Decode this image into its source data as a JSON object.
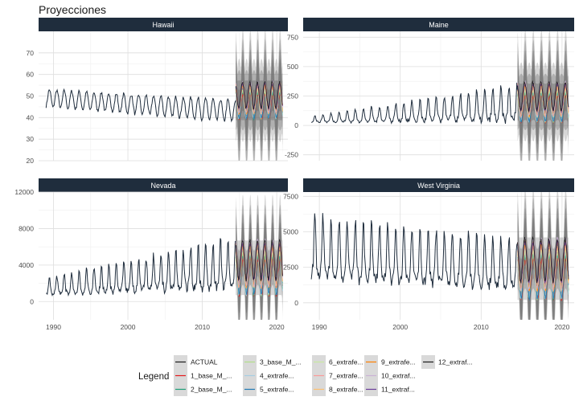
{
  "title": "Proyecciones",
  "legend": {
    "title": "Legend",
    "entries": [
      {
        "label": "ACTUAL",
        "color": "#1a1a1a"
      },
      {
        "label": "1_base_M_...",
        "color": "#e41a1c"
      },
      {
        "label": "2_base_M_...",
        "color": "#1b9e77"
      },
      {
        "label": "3_base_M_...",
        "color": "#b2df8a"
      },
      {
        "label": "4_extrafe...",
        "color": "#a6cee3"
      },
      {
        "label": "5_extrafe...",
        "color": "#1f78b4"
      },
      {
        "label": "6_extrafe...",
        "color": "#c7e9a0"
      },
      {
        "label": "7_extrafe...",
        "color": "#fb9a99"
      },
      {
        "label": "8_extrafe...",
        "color": "#fdbf6f"
      },
      {
        "label": "9_extrafe...",
        "color": "#ff7f00"
      },
      {
        "label": "10_extraf...",
        "color": "#cab2d6"
      },
      {
        "label": "11_extraf...",
        "color": "#6a3d9a"
      },
      {
        "label": "12_extraf...",
        "color": "#1a1a1a"
      }
    ]
  },
  "chart_data": {
    "type": "line",
    "shared_x_range": [
      1988,
      2021.5
    ],
    "x_ticks": [
      1990,
      2000,
      2010,
      2020
    ],
    "history_start": 1989,
    "forecast_start": 2014.5,
    "forecast_end": 2020.8,
    "series_names": [
      "ACTUAL",
      "1_base_M_...",
      "2_base_M_...",
      "3_base_M_...",
      "4_extrafe...",
      "5_extrafe...",
      "6_extrafe...",
      "7_extrafe...",
      "8_extrafe...",
      "9_extrafe...",
      "10_extraf...",
      "11_extraf...",
      "12_extraf..."
    ],
    "panels": [
      {
        "title": "Hawaii",
        "ylim": [
          20,
          80
        ],
        "y_ticks": [
          20,
          30,
          40,
          50,
          60,
          70
        ],
        "approx_history": {
          "level_start": 49,
          "level_end": 43,
          "seasonal_amp_start": 4,
          "seasonal_amp_end": 5
        },
        "approx_forecast": {
          "center": 48,
          "amp": 8,
          "band_low": 24,
          "band_high": 77
        }
      },
      {
        "title": "Maine",
        "ylim": [
          -300,
          800
        ],
        "y_ticks": [
          -250,
          0,
          250,
          500,
          750
        ],
        "approx_history": {
          "level_start": 45,
          "level_end": 150,
          "seasonal_amp_start": 30,
          "seasonal_amp_end": 180
        },
        "approx_forecast": {
          "center": 200,
          "amp": 160,
          "band_low": -240,
          "band_high": 720
        }
      },
      {
        "title": "Nevada",
        "ylim": [
          -2000,
          12000
        ],
        "y_ticks": [
          0,
          4000,
          8000,
          12000
        ],
        "approx_history": {
          "level_start": 1400,
          "level_end": 3500,
          "seasonal_amp_start": 1100,
          "seasonal_amp_end": 3200
        },
        "approx_forecast": {
          "center": 3700,
          "amp": 2800,
          "band_low": -1200,
          "band_high": 9800
        }
      },
      {
        "title": "West Virginia",
        "ylim": [
          -1200,
          7800
        ],
        "y_ticks": [
          0,
          2500,
          5000,
          7500
        ],
        "approx_history": {
          "level_start": 3300,
          "level_end": 2300,
          "seasonal_amp_start": 2600,
          "seasonal_amp_end": 2000
        },
        "approx_forecast": {
          "center": 2400,
          "amp": 2000,
          "band_low": -800,
          "band_high": 7200
        }
      }
    ]
  }
}
